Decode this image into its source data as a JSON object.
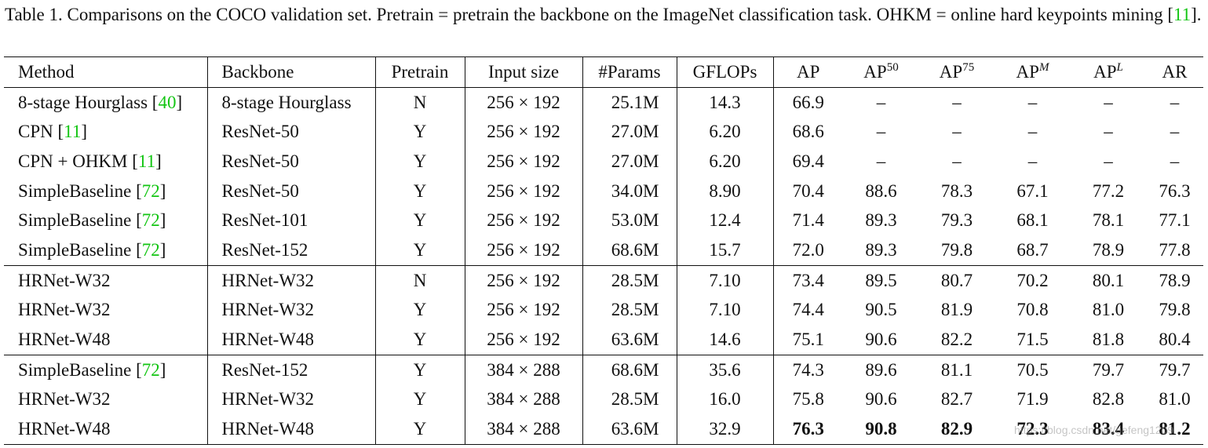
{
  "caption": {
    "lead": "Table 1. Comparisons on the COCO validation set. Pretrain = pretrain the backbone on the ImageNet classification task. OHKM = online hard keypoints mining [",
    "ref": "11",
    "tail": "]."
  },
  "headers": {
    "method": "Method",
    "backbone": "Backbone",
    "pretrain": "Pretrain",
    "input_size": "Input size",
    "params": "#Params",
    "gflops": "GFLOPs",
    "ap": "AP",
    "ap50_base": "AP",
    "ap50_sup": "50",
    "ap75_base": "AP",
    "ap75_sup": "75",
    "apm_base": "AP",
    "apm_sup": "M",
    "apl_base": "AP",
    "apl_sup": "L",
    "ar": "AR"
  },
  "rows": [
    {
      "method": "8-stage Hourglass",
      "ref": "40",
      "backbone": "8-stage Hourglass",
      "pretrain": "N",
      "input": "256 × 192",
      "params": "25.1M",
      "gflops": "14.3",
      "ap": "66.9",
      "ap50": "–",
      "ap75": "–",
      "apm": "–",
      "apl": "–",
      "ar": "–"
    },
    {
      "method": "CPN",
      "ref": "11",
      "backbone": "ResNet-50",
      "pretrain": "Y",
      "input": "256 × 192",
      "params": "27.0M",
      "gflops": "6.20",
      "ap": "68.6",
      "ap50": "–",
      "ap75": "–",
      "apm": "–",
      "apl": "–",
      "ar": "–"
    },
    {
      "method": "CPN + OHKM",
      "ref": "11",
      "backbone": "ResNet-50",
      "pretrain": "Y",
      "input": "256 × 192",
      "params": "27.0M",
      "gflops": "6.20",
      "ap": "69.4",
      "ap50": "–",
      "ap75": "–",
      "apm": "–",
      "apl": "–",
      "ar": "–"
    },
    {
      "method": "SimpleBaseline",
      "ref": "72",
      "backbone": "ResNet-50",
      "pretrain": "Y",
      "input": "256 × 192",
      "params": "34.0M",
      "gflops": "8.90",
      "ap": "70.4",
      "ap50": "88.6",
      "ap75": "78.3",
      "apm": "67.1",
      "apl": "77.2",
      "ar": "76.3"
    },
    {
      "method": "SimpleBaseline",
      "ref": "72",
      "backbone": "ResNet-101",
      "pretrain": "Y",
      "input": "256 × 192",
      "params": "53.0M",
      "gflops": "12.4",
      "ap": "71.4",
      "ap50": "89.3",
      "ap75": "79.3",
      "apm": "68.1",
      "apl": "78.1",
      "ar": "77.1"
    },
    {
      "method": "SimpleBaseline",
      "ref": "72",
      "backbone": "ResNet-152",
      "pretrain": "Y",
      "input": "256 × 192",
      "params": "68.6M",
      "gflops": "15.7",
      "ap": "72.0",
      "ap50": "89.3",
      "ap75": "79.8",
      "apm": "68.7",
      "apl": "78.9",
      "ar": "77.8"
    },
    {
      "method": "HRNet-W32",
      "ref": "",
      "backbone": "HRNet-W32",
      "pretrain": "N",
      "input": "256 × 192",
      "params": "28.5M",
      "gflops": "7.10",
      "ap": "73.4",
      "ap50": "89.5",
      "ap75": "80.7",
      "apm": "70.2",
      "apl": "80.1",
      "ar": "78.9"
    },
    {
      "method": "HRNet-W32",
      "ref": "",
      "backbone": "HRNet-W32",
      "pretrain": "Y",
      "input": "256 × 192",
      "params": "28.5M",
      "gflops": "7.10",
      "ap": "74.4",
      "ap50": "90.5",
      "ap75": "81.9",
      "apm": "70.8",
      "apl": "81.0",
      "ar": "79.8"
    },
    {
      "method": "HRNet-W48",
      "ref": "",
      "backbone": "HRNet-W48",
      "pretrain": "Y",
      "input": "256 × 192",
      "params": "63.6M",
      "gflops": "14.6",
      "ap": "75.1",
      "ap50": "90.6",
      "ap75": "82.2",
      "apm": "71.5",
      "apl": "81.8",
      "ar": "80.4"
    },
    {
      "method": "SimpleBaseline",
      "ref": "72",
      "backbone": "ResNet-152",
      "pretrain": "Y",
      "input": "384 × 288",
      "params": "68.6M",
      "gflops": "35.6",
      "ap": "74.3",
      "ap50": "89.6",
      "ap75": "81.1",
      "apm": "70.5",
      "apl": "79.7",
      "ar": "79.7"
    },
    {
      "method": "HRNet-W32",
      "ref": "",
      "backbone": "HRNet-W32",
      "pretrain": "Y",
      "input": "384 × 288",
      "params": "28.5M",
      "gflops": "16.0",
      "ap": "75.8",
      "ap50": "90.6",
      "ap75": "82.7",
      "apm": "71.9",
      "apl": "82.8",
      "ar": "81.0"
    },
    {
      "method": "HRNet-W48",
      "ref": "",
      "backbone": "HRNet-W48",
      "pretrain": "Y",
      "input": "384 × 288",
      "params": "63.6M",
      "gflops": "32.9",
      "ap": "76.3",
      "ap50": "90.8",
      "ap75": "82.9",
      "apm": "72.3",
      "apl": "83.4",
      "ar": "81.2",
      "bold_metrics": true
    }
  ],
  "group_starts": [
    6,
    9
  ],
  "watermark": "https://blog.csdn.net/gefeng1209"
}
